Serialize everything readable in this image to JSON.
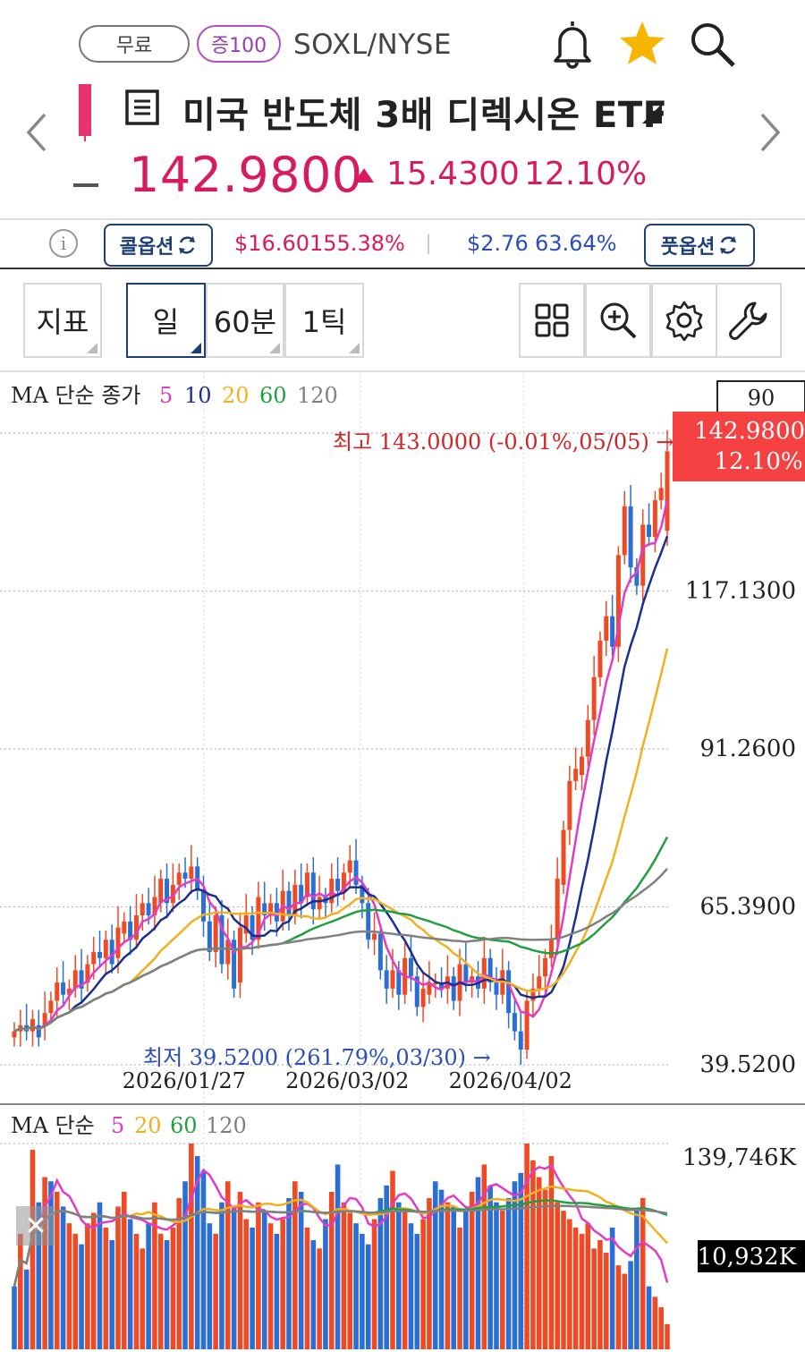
{
  "header": {
    "free_label": "무료",
    "margin_label": "증100",
    "ticker": "SOXL/NYSE",
    "title": "미국 반도체 3배 디렉시온 ETF",
    "price": "142.9800",
    "change": "15.4300",
    "change_pct": "12.10%",
    "icons": [
      "bell-icon",
      "star-icon",
      "search-icon",
      "chevron-left-icon",
      "chevron-right-icon",
      "document-icon"
    ],
    "colors": {
      "up": "#d81b60",
      "star": "#f7b500"
    }
  },
  "options": {
    "call_label": "콜옵션",
    "call_price": "$16.60",
    "call_pct": "155.38%",
    "put_label": "풋옵션",
    "put_price": "$2.76",
    "put_pct": "63.64%"
  },
  "toolbar": {
    "indicator_label": "지표",
    "period_day": "일",
    "period_60m": "60분",
    "period_tick": "1틱",
    "active": "일",
    "icons": [
      "layout-grid-icon",
      "zoom-in-icon",
      "settings-gear-icon",
      "wrench-icon"
    ]
  },
  "chart_data": {
    "type": "candlestick",
    "price_panel": {
      "legend_title": "MA 단순 종가",
      "ma_periods": [
        "5",
        "10",
        "20",
        "60",
        "120"
      ],
      "ma_colors": [
        "#e23bc5",
        "#1a2f8f",
        "#f0b020",
        "#20a040",
        "#808080"
      ],
      "y_labels": [
        "117.1300",
        "91.2600",
        "65.3900",
        "39.5200"
      ],
      "y_ticks": [
        143.0,
        117.13,
        91.26,
        65.39,
        39.52
      ],
      "y_range": [
        39.52,
        143.0
      ],
      "top_box": "90",
      "current_price": "142.9800",
      "current_pct": "12.10%",
      "high_note": "최고 143.0000 (-0.01%,05/05) →",
      "low_note": "최저 39.5200 (261.79%,03/30) →",
      "dates": [
        "2026/01/27",
        "2026/03/02",
        "2026/04/02"
      ],
      "candles_close": [
        45,
        46,
        45,
        47,
        44,
        48,
        50,
        53,
        51,
        52,
        55,
        52,
        56,
        58,
        57,
        60,
        56,
        62,
        63,
        60,
        64,
        66,
        64,
        67,
        70,
        66,
        69,
        71,
        70,
        72,
        68,
        63,
        58,
        64,
        56,
        60,
        52,
        62,
        64,
        60,
        67,
        64,
        66,
        63,
        68,
        64,
        69,
        66,
        71,
        65,
        67,
        66,
        70,
        68,
        71,
        73,
        69,
        66,
        60,
        61,
        55,
        52,
        55,
        51,
        57,
        54,
        49,
        52,
        53,
        53,
        52,
        54,
        50,
        56,
        53,
        54,
        52,
        57,
        53,
        51,
        55,
        48,
        45,
        42,
        50,
        52,
        54,
        57,
        60,
        70,
        78,
        86,
        88,
        90,
        96,
        103,
        109,
        113,
        108,
        123,
        131,
        121,
        118,
        128,
        126,
        132,
        134,
        140
      ],
      "candles_open": [
        44,
        45,
        46,
        45,
        46,
        46,
        48,
        50,
        53,
        51,
        52,
        55,
        53,
        56,
        58,
        57,
        60,
        57,
        61,
        63,
        60,
        64,
        66,
        64,
        66,
        70,
        66,
        69,
        71,
        70,
        72,
        68,
        63,
        58,
        64,
        56,
        60,
        53,
        61,
        64,
        60,
        66,
        64,
        66,
        63,
        68,
        64,
        69,
        67,
        71,
        65,
        67,
        66,
        70,
        68,
        71,
        73,
        69,
        66,
        60,
        61,
        55,
        52,
        55,
        51,
        57,
        54,
        49,
        51,
        53,
        53,
        52,
        54,
        50,
        56,
        53,
        54,
        52,
        57,
        53,
        51,
        55,
        48,
        45,
        42,
        50,
        52,
        54,
        57,
        60,
        69,
        78,
        86,
        87,
        90,
        96,
        103,
        109,
        113,
        108,
        123,
        131,
        121,
        118,
        128,
        126,
        132,
        127
      ]
    },
    "volume_panel": {
      "legend_title": "MA 단순",
      "ma_periods": [
        "5",
        "20",
        "60",
        "120"
      ],
      "ma_colors": [
        "#e23bc5",
        "#f0b020",
        "#20a040",
        "#808080"
      ],
      "y_labels": [
        "139,746K",
        "10,932K"
      ],
      "volumes": [
        30,
        55,
        38,
        95,
        70,
        82,
        80,
        75,
        68,
        60,
        55,
        50,
        60,
        65,
        70,
        58,
        52,
        68,
        75,
        62,
        55,
        48,
        60,
        70,
        55,
        52,
        58,
        72,
        80,
        98,
        92,
        85,
        60,
        55,
        70,
        80,
        68,
        75,
        62,
        58,
        70,
        66,
        60,
        55,
        62,
        72,
        80,
        75,
        58,
        52,
        48,
        62,
        75,
        88,
        70,
        65,
        60,
        55,
        50,
        62,
        72,
        78,
        85,
        70,
        66,
        60,
        55,
        62,
        72,
        80,
        76,
        70,
        68,
        58,
        66,
        75,
        82,
        88,
        78,
        70,
        66,
        72,
        80,
        84,
        98,
        90,
        82,
        76,
        92,
        70,
        66,
        62,
        58,
        55,
        60,
        48,
        52,
        46,
        58,
        40,
        36,
        42,
        66,
        72,
        30,
        25,
        20,
        12
      ],
      "vol_up": [
        false,
        true,
        false,
        true,
        false,
        true,
        false,
        true,
        false,
        true,
        true,
        false,
        true,
        true,
        false,
        true,
        false,
        true,
        true,
        false,
        true,
        true,
        false,
        true,
        true,
        false,
        true,
        true,
        false,
        true,
        false,
        false,
        false,
        true,
        false,
        true,
        false,
        true,
        true,
        false,
        true,
        false,
        true,
        false,
        true,
        false,
        true,
        false,
        true,
        false,
        true,
        false,
        true,
        false,
        true,
        true,
        false,
        false,
        false,
        true,
        false,
        false,
        true,
        false,
        true,
        false,
        false,
        true,
        true,
        false,
        false,
        true,
        false,
        true,
        false,
        true,
        false,
        true,
        false,
        false,
        true,
        false,
        false,
        false,
        true,
        true,
        true,
        true,
        true,
        true,
        true,
        true,
        true,
        true,
        true,
        true,
        true,
        true,
        false,
        true,
        true,
        false,
        false,
        true,
        false,
        true,
        true,
        true
      ]
    }
  }
}
